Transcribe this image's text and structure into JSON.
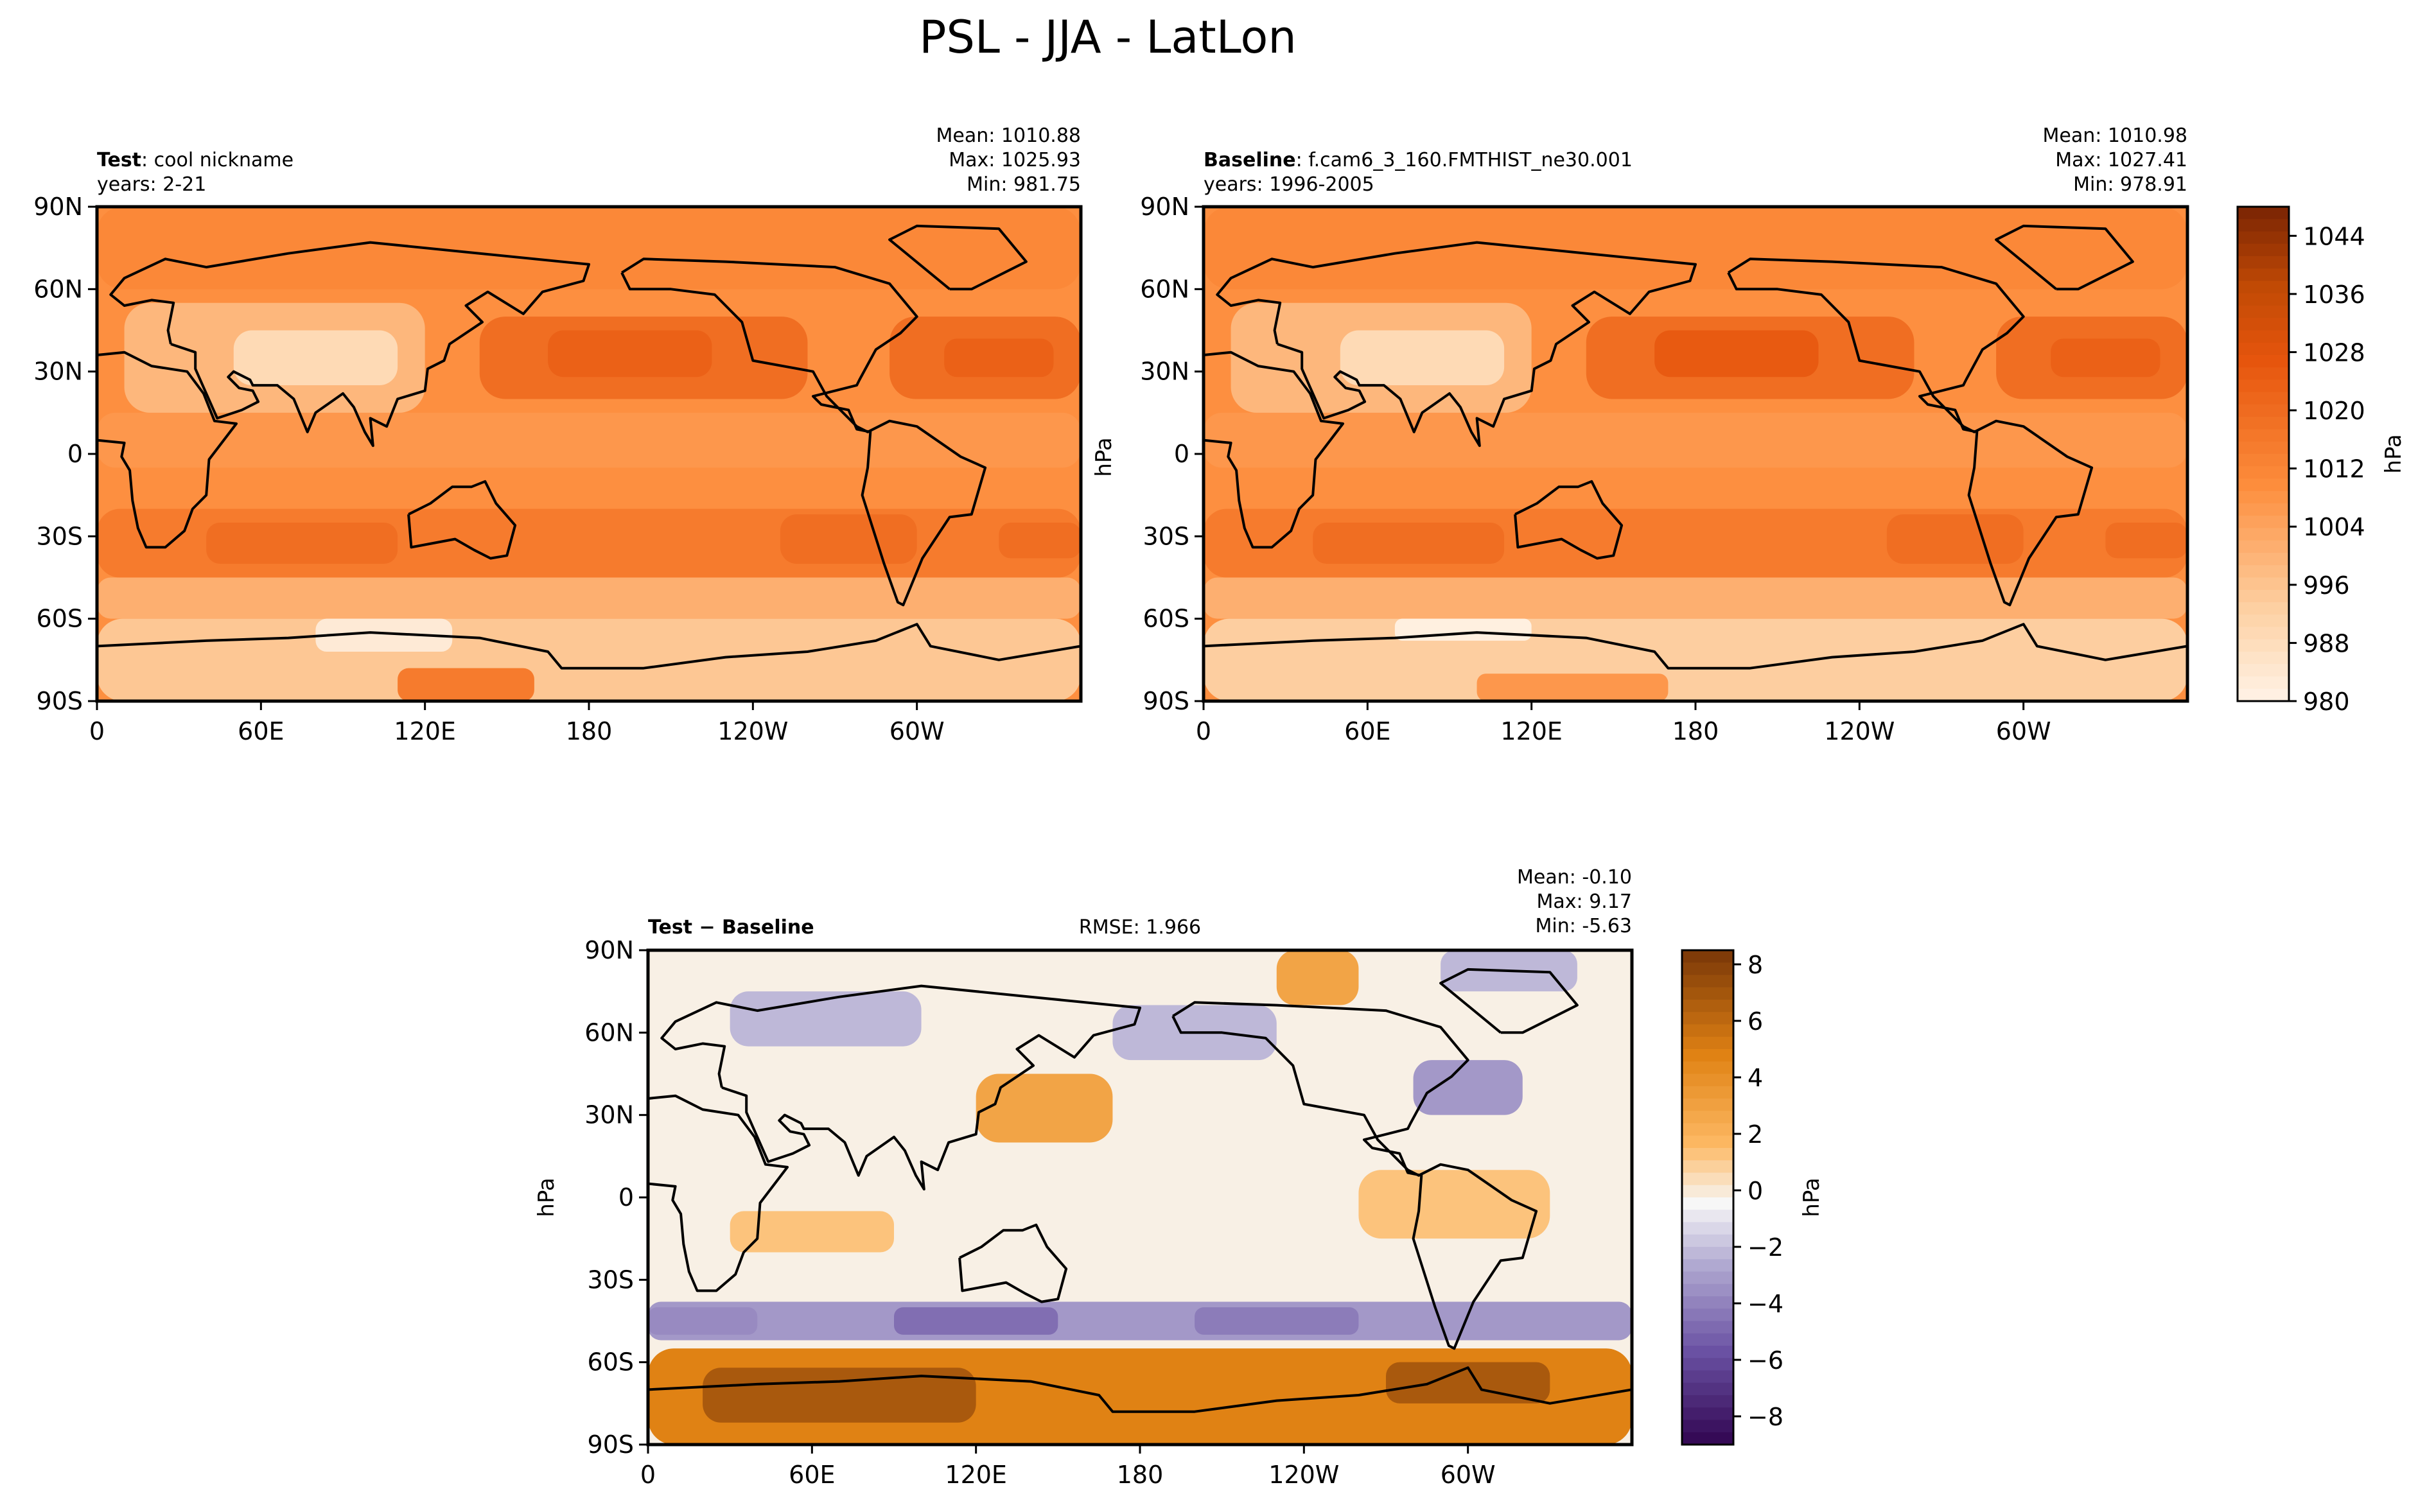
{
  "figure": {
    "title": "PSL - JJA - LatLon"
  },
  "chart_data": [
    {
      "type": "heatmap",
      "panel": "test",
      "title_bold": "Test",
      "title_rest": ": cool nickname",
      "years": "years: 2-21",
      "stats": [
        "Mean: 1010.88",
        "Max: 1025.93",
        "Min: 981.75"
      ],
      "x_ticks": [
        "0",
        "60E",
        "120E",
        "180",
        "120W",
        "60W"
      ],
      "y_ticks": [
        "90N",
        "60N",
        "30N",
        "0",
        "30S",
        "60S",
        "90S"
      ],
      "xlim": [
        0,
        360
      ],
      "ylim": [
        -90,
        90
      ],
      "cells": [
        {
          "lon": [
            0,
            360
          ],
          "lat": [
            -90,
            90
          ],
          "value": 1010
        },
        {
          "lon": [
            0,
            360
          ],
          "lat": [
            -90,
            -60
          ],
          "value": 996
        },
        {
          "lon": [
            0,
            360
          ],
          "lat": [
            -60,
            -45
          ],
          "value": 1002
        },
        {
          "lon": [
            0,
            360
          ],
          "lat": [
            -45,
            -20
          ],
          "value": 1016
        },
        {
          "lon": [
            0,
            360
          ],
          "lat": [
            -5,
            15
          ],
          "value": 1008
        },
        {
          "lon": [
            0,
            360
          ],
          "lat": [
            60,
            90
          ],
          "value": 1012
        },
        {
          "lon": [
            140,
            260
          ],
          "lat": [
            20,
            50
          ],
          "value": 1020
        },
        {
          "lon": [
            165,
            225
          ],
          "lat": [
            28,
            45
          ],
          "value": 1024
        },
        {
          "lon": [
            290,
            360
          ],
          "lat": [
            20,
            50
          ],
          "value": 1020
        },
        {
          "lon": [
            310,
            350
          ],
          "lat": [
            28,
            42
          ],
          "value": 1024
        },
        {
          "lon": [
            10,
            120
          ],
          "lat": [
            15,
            55
          ],
          "value": 1000
        },
        {
          "lon": [
            50,
            110
          ],
          "lat": [
            25,
            45
          ],
          "value": 990
        },
        {
          "lon": [
            40,
            110
          ],
          "lat": [
            -40,
            -25
          ],
          "value": 1020
        },
        {
          "lon": [
            250,
            300
          ],
          "lat": [
            -40,
            -22
          ],
          "value": 1020
        },
        {
          "lon": [
            330,
            360
          ],
          "lat": [
            -38,
            -25
          ],
          "value": 1020
        },
        {
          "lon": [
            80,
            130
          ],
          "lat": [
            -72,
            -60
          ],
          "value": 984
        },
        {
          "lon": [
            110,
            160
          ],
          "lat": [
            -90,
            -78
          ],
          "value": 1016
        }
      ],
      "colorbar": {
        "label": "hPa",
        "min": 980,
        "max": 1048,
        "ticks": [
          "1044",
          "1036",
          "1028",
          "1020",
          "1012",
          "1004",
          "996",
          "988",
          "980"
        ]
      }
    },
    {
      "type": "heatmap",
      "panel": "baseline",
      "title_bold": "Baseline",
      "title_rest": ": f.cam6_3_160.FMTHIST_ne30.001",
      "years": "years: 1996-2005",
      "stats": [
        "Mean: 1010.98",
        "Max: 1027.41",
        "Min: 978.91"
      ],
      "x_ticks": [
        "0",
        "60E",
        "120E",
        "180",
        "120W",
        "60W"
      ],
      "y_ticks": [
        "90N",
        "60N",
        "30N",
        "0",
        "30S",
        "60S",
        "90S"
      ],
      "xlim": [
        0,
        360
      ],
      "ylim": [
        -90,
        90
      ],
      "cells": [
        {
          "lon": [
            0,
            360
          ],
          "lat": [
            -90,
            90
          ],
          "value": 1010
        },
        {
          "lon": [
            0,
            360
          ],
          "lat": [
            -90,
            -60
          ],
          "value": 994
        },
        {
          "lon": [
            0,
            360
          ],
          "lat": [
            -60,
            -45
          ],
          "value": 1002
        },
        {
          "lon": [
            0,
            360
          ],
          "lat": [
            -45,
            -20
          ],
          "value": 1016
        },
        {
          "lon": [
            0,
            360
          ],
          "lat": [
            -5,
            15
          ],
          "value": 1008
        },
        {
          "lon": [
            0,
            360
          ],
          "lat": [
            60,
            90
          ],
          "value": 1012
        },
        {
          "lon": [
            140,
            260
          ],
          "lat": [
            20,
            50
          ],
          "value": 1020
        },
        {
          "lon": [
            165,
            225
          ],
          "lat": [
            28,
            45
          ],
          "value": 1026
        },
        {
          "lon": [
            290,
            360
          ],
          "lat": [
            20,
            50
          ],
          "value": 1020
        },
        {
          "lon": [
            310,
            350
          ],
          "lat": [
            28,
            42
          ],
          "value": 1024
        },
        {
          "lon": [
            10,
            120
          ],
          "lat": [
            15,
            55
          ],
          "value": 1000
        },
        {
          "lon": [
            50,
            110
          ],
          "lat": [
            25,
            45
          ],
          "value": 990
        },
        {
          "lon": [
            40,
            110
          ],
          "lat": [
            -40,
            -25
          ],
          "value": 1020
        },
        {
          "lon": [
            250,
            300
          ],
          "lat": [
            -40,
            -22
          ],
          "value": 1020
        },
        {
          "lon": [
            330,
            360
          ],
          "lat": [
            -38,
            -25
          ],
          "value": 1020
        },
        {
          "lon": [
            70,
            120
          ],
          "lat": [
            -68,
            -60
          ],
          "value": 982
        },
        {
          "lon": [
            100,
            170
          ],
          "lat": [
            -90,
            -80
          ],
          "value": 1008
        }
      ],
      "colorbar": {
        "label": "hPa",
        "min": 980,
        "max": 1048,
        "ticks": [
          "1044",
          "1036",
          "1028",
          "1020",
          "1012",
          "1004",
          "996",
          "988",
          "980"
        ]
      }
    },
    {
      "type": "heatmap",
      "panel": "difference",
      "title_bold": "Test − Baseline",
      "rmse": "RMSE: 1.966",
      "stats": [
        "Mean: -0.10",
        "Max:  9.17",
        "Min: -5.63"
      ],
      "x_ticks": [
        "0",
        "60E",
        "120E",
        "180",
        "120W",
        "60W"
      ],
      "y_ticks": [
        "90N",
        "60N",
        "30N",
        "0",
        "30S",
        "60S",
        "90S"
      ],
      "y_label": "hPa",
      "xlim": [
        0,
        360
      ],
      "ylim": [
        -90,
        90
      ],
      "cells": [
        {
          "lon": [
            0,
            360
          ],
          "lat": [
            -90,
            90
          ],
          "value": 0
        },
        {
          "lon": [
            0,
            360
          ],
          "lat": [
            -90,
            -55
          ],
          "value": 5
        },
        {
          "lon": [
            20,
            120
          ],
          "lat": [
            -82,
            -62
          ],
          "value": 7
        },
        {
          "lon": [
            270,
            330
          ],
          "lat": [
            -75,
            -60
          ],
          "value": 7
        },
        {
          "lon": [
            0,
            360
          ],
          "lat": [
            -52,
            -38
          ],
          "value": -3
        },
        {
          "lon": [
            90,
            150
          ],
          "lat": [
            -50,
            -40
          ],
          "value": -4.5
        },
        {
          "lon": [
            200,
            260
          ],
          "lat": [
            -50,
            -40
          ],
          "value": -4
        },
        {
          "lon": [
            0,
            40
          ],
          "lat": [
            -50,
            -40
          ],
          "value": -3.5
        },
        {
          "lon": [
            120,
            170
          ],
          "lat": [
            20,
            45
          ],
          "value": 3
        },
        {
          "lon": [
            260,
            330
          ],
          "lat": [
            -15,
            10
          ],
          "value": 1.5
        },
        {
          "lon": [
            30,
            90
          ],
          "lat": [
            -20,
            -5
          ],
          "value": 1.5
        },
        {
          "lon": [
            170,
            230
          ],
          "lat": [
            50,
            70
          ],
          "value": -2
        },
        {
          "lon": [
            280,
            320
          ],
          "lat": [
            30,
            50
          ],
          "value": -3
        },
        {
          "lon": [
            30,
            100
          ],
          "lat": [
            55,
            75
          ],
          "value": -2
        },
        {
          "lon": [
            230,
            260
          ],
          "lat": [
            70,
            90
          ],
          "value": 3
        },
        {
          "lon": [
            290,
            340
          ],
          "lat": [
            75,
            90
          ],
          "value": -2
        }
      ],
      "colorbar": {
        "label": "hPa",
        "min": -9,
        "max": 8.5,
        "ticks": [
          "8",
          "6",
          "4",
          "2",
          "0",
          "−2",
          "−4",
          "−6",
          "−8"
        ],
        "tick_values": [
          8,
          6,
          4,
          2,
          0,
          -2,
          -4,
          -6,
          -8
        ]
      }
    }
  ]
}
